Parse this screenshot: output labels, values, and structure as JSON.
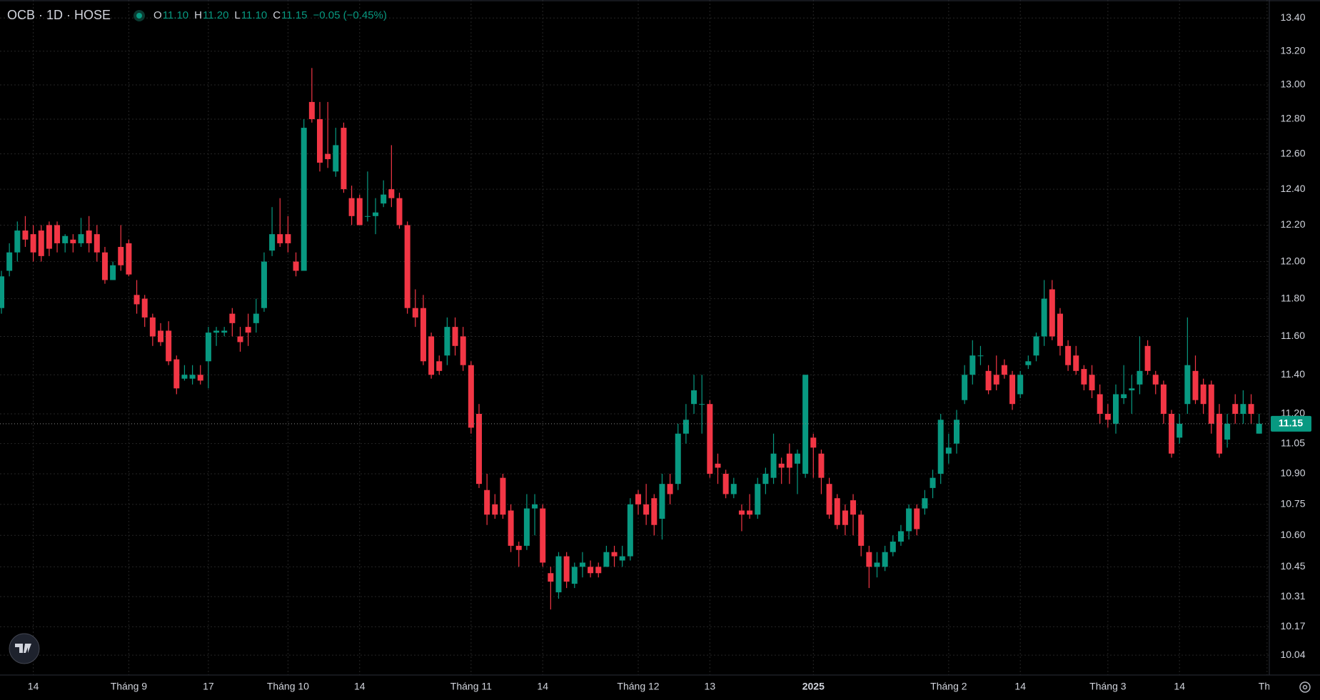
{
  "header": {
    "symbol": "OCB · 1D · HOSE",
    "legend": [
      {
        "key": "O",
        "value": "11.10"
      },
      {
        "key": "H",
        "value": "11.20"
      },
      {
        "key": "L",
        "value": "11.10"
      },
      {
        "key": "C",
        "value": "11.15"
      }
    ],
    "change": "−0.05 (−0.45%)"
  },
  "chart_data": {
    "type": "candlestick",
    "log_scale": true,
    "grid": true,
    "up_color": "#089981",
    "down_color": "#f23645",
    "ylim": [
      9.95,
      13.51
    ],
    "yticks": [
      {
        "value": 13.4,
        "label": "13.40"
      },
      {
        "value": 13.2,
        "label": "13.20"
      },
      {
        "value": 13.0,
        "label": "13.00"
      },
      {
        "value": 12.8,
        "label": "12.80"
      },
      {
        "value": 12.6,
        "label": "12.60"
      },
      {
        "value": 12.4,
        "label": "12.40"
      },
      {
        "value": 12.2,
        "label": "12.20"
      },
      {
        "value": 12.0,
        "label": "12.00"
      },
      {
        "value": 11.8,
        "label": "11.80"
      },
      {
        "value": 11.6,
        "label": "11.60"
      },
      {
        "value": 11.4,
        "label": "11.40"
      },
      {
        "value": 11.2,
        "label": "11.20"
      },
      11.05,
      {
        "value": 10.9,
        "label": "10.90"
      },
      10.75,
      {
        "value": 10.6,
        "label": "10.60"
      },
      10.45,
      10.31,
      10.17,
      10.04
    ],
    "last_price": 11.15,
    "categories": [
      null,
      null,
      null,
      null,
      "14",
      null,
      null,
      null,
      null,
      null,
      null,
      null,
      null,
      null,
      null,
      null,
      "Tháng 9",
      null,
      null,
      null,
      null,
      null,
      null,
      null,
      null,
      null,
      "17",
      null,
      null,
      null,
      null,
      null,
      null,
      null,
      null,
      null,
      "Tháng 10",
      null,
      null,
      null,
      null,
      null,
      null,
      null,
      null,
      "14",
      null,
      null,
      null,
      null,
      null,
      null,
      null,
      null,
      null,
      null,
      null,
      null,
      null,
      "Tháng 11",
      null,
      null,
      null,
      null,
      null,
      null,
      null,
      null,
      "14",
      null,
      null,
      null,
      null,
      null,
      null,
      null,
      null,
      null,
      null,
      null,
      "Tháng 12",
      null,
      null,
      null,
      null,
      null,
      null,
      null,
      null,
      "13",
      null,
      null,
      null,
      null,
      null,
      null,
      null,
      null,
      null,
      null,
      null,
      null,
      "2025",
      null,
      null,
      null,
      null,
      null,
      null,
      null,
      null,
      null,
      null,
      null,
      null,
      null,
      null,
      null,
      null,
      "Tháng 2",
      null,
      null,
      null,
      null,
      null,
      null,
      null,
      null,
      "14",
      null,
      null,
      null,
      null,
      null,
      null,
      null,
      null,
      null,
      null,
      "Tháng 3",
      null,
      null,
      null,
      null,
      null,
      null,
      null,
      null,
      "14",
      null,
      null,
      null,
      null,
      null,
      null,
      null,
      null,
      null,
      null,
      "Thá"
    ],
    "open": [
      11.75,
      11.95,
      12.05,
      12.17,
      12.15,
      12.17,
      12.2,
      12.2,
      12.1,
      12.12,
      12.1,
      12.17,
      12.15,
      12.05,
      11.9,
      12.08,
      12.1,
      11.82,
      11.8,
      11.7,
      11.63,
      11.63,
      11.48,
      11.38,
      11.38,
      11.4,
      11.47,
      11.62,
      11.62,
      11.72,
      11.6,
      11.65,
      11.67,
      11.75,
      12.06,
      12.15,
      12.15,
      12.0,
      11.95,
      12.9,
      12.8,
      12.6,
      12.5,
      12.75,
      12.35,
      12.35,
      12.25,
      12.25,
      12.32,
      12.4,
      12.35,
      12.2,
      11.75,
      11.75,
      11.6,
      11.47,
      11.5,
      11.65,
      11.6,
      11.45,
      11.2,
      10.82,
      10.75,
      10.88,
      10.72,
      10.55,
      10.55,
      10.73,
      10.73,
      10.42,
      10.33,
      10.5,
      10.37,
      10.45,
      10.45,
      10.45,
      10.45,
      10.52,
      10.48,
      10.5,
      10.8,
      10.75,
      10.78,
      10.68,
      10.85,
      10.85,
      11.1,
      11.25,
      11.25,
      11.25,
      10.95,
      10.9,
      10.8,
      10.72,
      10.72,
      10.7,
      10.85,
      10.88,
      10.95,
      11.0,
      10.95,
      10.9,
      11.08,
      11.0,
      10.85,
      10.78,
      10.72,
      10.77,
      10.7,
      10.52,
      10.45,
      10.45,
      10.52,
      10.57,
      10.62,
      10.73,
      10.73,
      10.83,
      10.9,
      11.0,
      11.05,
      11.27,
      11.4,
      11.5,
      11.42,
      11.4,
      11.45,
      11.4,
      11.3,
      11.45,
      11.5,
      11.6,
      11.85,
      11.72,
      11.55,
      11.5,
      11.43,
      11.4,
      11.3,
      11.2,
      11.15,
      11.28,
      11.32,
      11.35,
      11.55,
      11.4,
      11.35,
      11.2,
      11.08,
      11.25,
      11.42,
      11.35,
      11.35,
      11.2,
      11.07,
      11.25,
      11.2,
      11.25,
      11.1,
      null
    ],
    "high": [
      11.95,
      12.1,
      12.22,
      12.25,
      12.2,
      12.2,
      12.22,
      12.22,
      12.15,
      12.15,
      12.24,
      12.25,
      12.2,
      12.08,
      12.0,
      12.2,
      12.12,
      11.9,
      11.82,
      11.72,
      11.67,
      11.68,
      11.5,
      11.45,
      11.45,
      11.45,
      11.65,
      11.65,
      11.65,
      11.75,
      11.65,
      11.72,
      11.8,
      12.05,
      12.3,
      12.35,
      12.25,
      12.05,
      12.8,
      13.1,
      12.9,
      12.9,
      12.75,
      12.78,
      12.42,
      12.37,
      12.5,
      12.35,
      12.45,
      12.65,
      12.38,
      12.22,
      11.85,
      11.82,
      11.62,
      11.5,
      11.7,
      11.7,
      11.65,
      11.47,
      11.25,
      10.9,
      10.8,
      10.9,
      10.75,
      10.57,
      10.8,
      10.8,
      10.75,
      10.45,
      10.52,
      10.52,
      10.47,
      10.52,
      10.48,
      10.47,
      10.55,
      10.55,
      10.55,
      10.78,
      10.82,
      10.85,
      10.8,
      10.9,
      10.9,
      11.15,
      11.25,
      11.4,
      11.4,
      11.27,
      11.0,
      10.92,
      10.88,
      10.75,
      10.8,
      10.88,
      10.93,
      11.1,
      10.98,
      11.05,
      11.02,
      11.4,
      11.1,
      11.02,
      10.88,
      10.8,
      10.75,
      10.8,
      10.72,
      10.55,
      10.52,
      10.55,
      10.6,
      10.65,
      10.75,
      10.75,
      10.82,
      10.92,
      11.2,
      11.1,
      11.22,
      11.45,
      11.58,
      11.55,
      11.45,
      11.5,
      11.48,
      11.42,
      11.42,
      11.5,
      11.62,
      11.9,
      11.9,
      11.75,
      11.58,
      11.55,
      11.45,
      11.45,
      11.35,
      11.25,
      11.35,
      11.45,
      11.4,
      11.6,
      11.58,
      11.42,
      11.37,
      11.22,
      11.2,
      11.7,
      11.5,
      11.38,
      11.37,
      11.25,
      11.2,
      11.3,
      11.32,
      11.3,
      11.2,
      null
    ],
    "low": [
      11.72,
      11.92,
      12.0,
      12.08,
      12.0,
      12.0,
      12.03,
      12.05,
      12.05,
      12.05,
      12.08,
      12.05,
      12.0,
      11.88,
      11.9,
      11.95,
      11.92,
      11.72,
      11.65,
      11.55,
      11.55,
      11.45,
      11.3,
      11.37,
      11.35,
      11.35,
      11.33,
      11.55,
      11.6,
      11.6,
      11.52,
      11.55,
      11.62,
      11.73,
      12.03,
      12.08,
      12.05,
      11.92,
      11.95,
      12.78,
      12.5,
      12.52,
      12.47,
      12.38,
      12.2,
      12.2,
      12.22,
      12.15,
      12.3,
      12.3,
      12.18,
      11.72,
      11.65,
      11.45,
      11.38,
      11.4,
      11.45,
      11.5,
      11.42,
      11.1,
      10.83,
      10.65,
      10.68,
      10.68,
      10.52,
      10.45,
      10.53,
      10.6,
      10.45,
      10.25,
      10.3,
      10.35,
      10.35,
      10.4,
      10.4,
      10.4,
      10.45,
      10.45,
      10.45,
      10.48,
      10.7,
      10.65,
      10.6,
      10.58,
      10.75,
      10.82,
      11.05,
      11.2,
      11.1,
      10.88,
      10.85,
      10.78,
      10.78,
      10.62,
      10.68,
      10.68,
      10.8,
      10.85,
      10.85,
      10.85,
      10.8,
      10.88,
      10.88,
      10.8,
      10.68,
      10.63,
      10.6,
      10.6,
      10.5,
      10.35,
      10.4,
      10.43,
      10.5,
      10.55,
      10.58,
      10.6,
      10.7,
      10.78,
      10.85,
      10.95,
      11.0,
      11.25,
      11.35,
      11.45,
      11.3,
      11.32,
      11.38,
      11.22,
      11.28,
      11.43,
      11.47,
      11.55,
      11.58,
      11.5,
      11.42,
      11.4,
      11.32,
      11.28,
      11.15,
      11.13,
      11.1,
      11.25,
      11.2,
      11.3,
      11.4,
      11.3,
      11.15,
      10.98,
      11.05,
      11.2,
      11.25,
      11.2,
      11.1,
      10.98,
      11.03,
      11.15,
      11.15,
      11.15,
      11.1,
      null
    ],
    "close": [
      11.92,
      12.05,
      12.17,
      12.12,
      12.05,
      12.03,
      12.07,
      12.1,
      12.14,
      12.1,
      12.15,
      12.1,
      12.05,
      11.9,
      11.98,
      11.98,
      11.93,
      11.77,
      11.7,
      11.6,
      11.57,
      11.47,
      11.33,
      11.4,
      11.4,
      11.37,
      11.62,
      11.63,
      11.63,
      11.67,
      11.57,
      11.62,
      11.72,
      12.0,
      12.15,
      12.1,
      12.1,
      11.95,
      12.75,
      12.8,
      12.55,
      12.57,
      12.65,
      12.4,
      12.25,
      12.2,
      12.25,
      12.27,
      12.37,
      12.35,
      12.2,
      11.75,
      11.7,
      11.47,
      11.4,
      11.42,
      11.65,
      11.55,
      11.45,
      11.13,
      10.85,
      10.7,
      10.7,
      10.7,
      10.55,
      10.53,
      10.73,
      10.75,
      10.47,
      10.38,
      10.5,
      10.38,
      10.45,
      10.47,
      10.42,
      10.42,
      10.52,
      10.5,
      10.5,
      10.75,
      10.75,
      10.7,
      10.65,
      10.85,
      10.8,
      11.1,
      11.17,
      11.32,
      11.25,
      10.9,
      10.93,
      10.8,
      10.85,
      10.7,
      10.7,
      10.85,
      10.9,
      11.0,
      10.93,
      10.93,
      11.0,
      11.4,
      11.03,
      10.88,
      10.7,
      10.65,
      10.65,
      10.7,
      10.55,
      10.45,
      10.47,
      10.52,
      10.57,
      10.62,
      10.73,
      10.63,
      10.78,
      10.88,
      11.17,
      11.03,
      11.17,
      11.4,
      11.5,
      11.5,
      11.32,
      11.35,
      11.4,
      11.25,
      11.4,
      11.47,
      11.6,
      11.8,
      11.6,
      11.55,
      11.45,
      11.42,
      11.35,
      11.32,
      11.2,
      11.17,
      11.3,
      11.3,
      11.33,
      11.42,
      11.42,
      11.35,
      11.2,
      11.0,
      11.15,
      11.45,
      11.27,
      11.25,
      11.15,
      11.0,
      11.15,
      11.2,
      11.25,
      11.2,
      11.15,
      null
    ]
  }
}
